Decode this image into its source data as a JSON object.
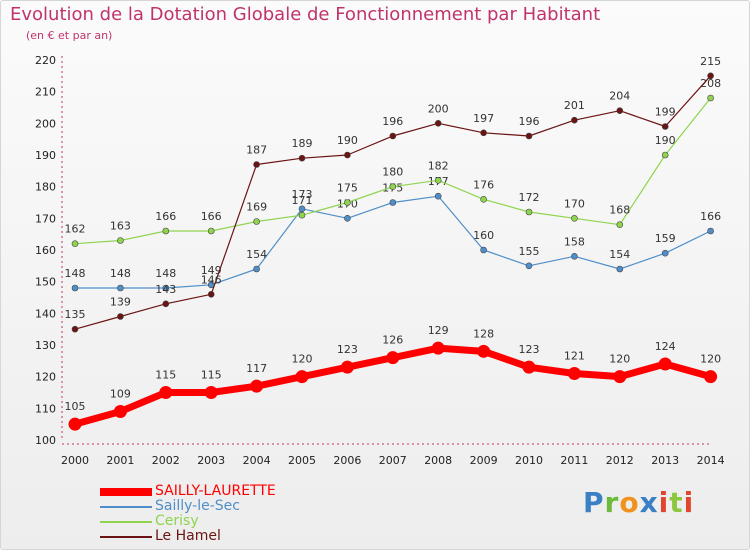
{
  "title": "Evolution de la Dotation Globale de Fonctionnement par Habitant",
  "subtitle": "(en € et par an)",
  "logo_text": "Proxiti",
  "colors": {
    "title": "#c0336d",
    "axis": "#c0336d"
  },
  "chart_data": {
    "type": "line",
    "title": "Evolution de la Dotation Globale de Fonctionnement par Habitant",
    "subtitle": "(en € et par an)",
    "xlabel": "",
    "ylabel": "",
    "ylim": [
      100,
      220
    ],
    "yticks": [
      100,
      110,
      120,
      130,
      140,
      150,
      160,
      170,
      180,
      190,
      200,
      210,
      220
    ],
    "x": [
      "2000",
      "2001",
      "2002",
      "2003",
      "2004",
      "2005",
      "2006",
      "2007",
      "2008",
      "2009",
      "2010",
      "2011",
      "2012",
      "2013",
      "2014"
    ],
    "grid": false,
    "legend_position": "bottom-left",
    "series": [
      {
        "name": "SAILLY-LAURETTE",
        "color": "#ff0000",
        "thick": true,
        "values": [
          105,
          109,
          115,
          115,
          117,
          120,
          123,
          126,
          129,
          128,
          123,
          121,
          120,
          124,
          120
        ]
      },
      {
        "name": "Sailly-le-Sec",
        "color": "#4f8fc9",
        "thick": false,
        "values": [
          148,
          148,
          148,
          149,
          154,
          173,
          170,
          175,
          177,
          160,
          155,
          158,
          154,
          159,
          166
        ]
      },
      {
        "name": "Cerisy",
        "color": "#8fd44f",
        "thick": false,
        "values": [
          162,
          163,
          166,
          166,
          169,
          171,
          175,
          180,
          182,
          176,
          172,
          170,
          168,
          190,
          208
        ]
      },
      {
        "name": "Le Hamel",
        "color": "#6b1414",
        "thick": false,
        "values": [
          135,
          139,
          143,
          146,
          187,
          189,
          190,
          196,
          200,
          197,
          196,
          201,
          204,
          199,
          215
        ]
      }
    ]
  }
}
